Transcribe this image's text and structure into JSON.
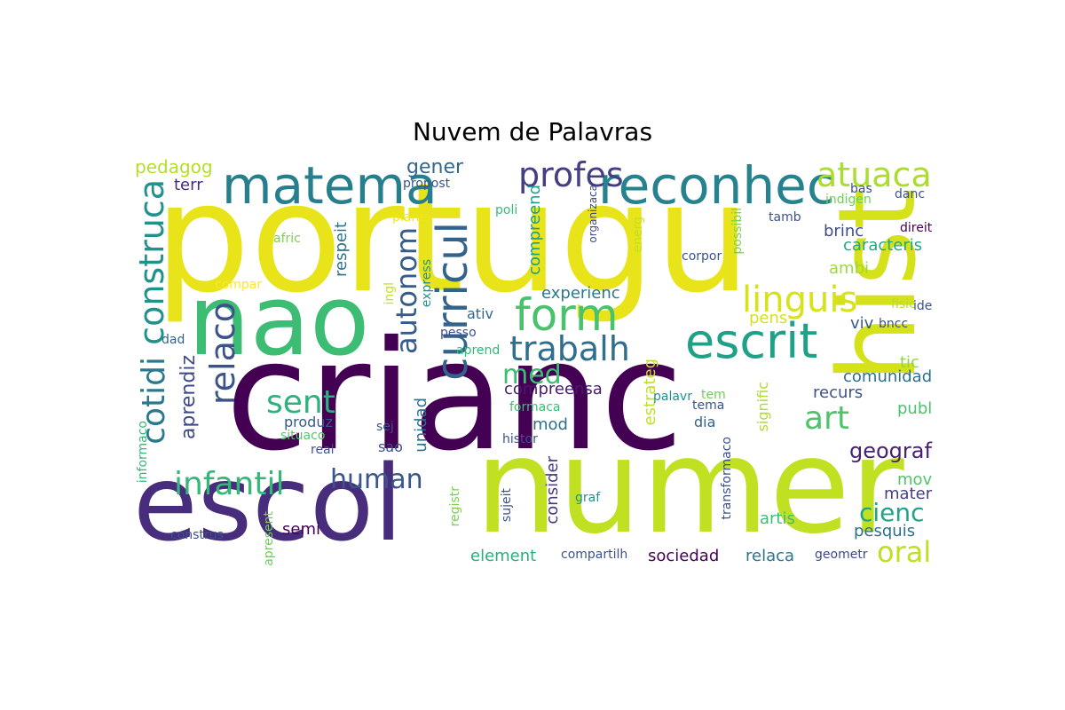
{
  "title": "Nuvem de Palavras",
  "palette": {
    "dark_purple": "#440154",
    "indigo": "#472d7b",
    "blue": "#3b528b",
    "steel": "#31688e",
    "teal": "#26828e",
    "sea": "#1f9e89",
    "green": "#35b779",
    "lime": "#6ece58",
    "yellow_green": "#b5de2b",
    "yellow": "#e8e419"
  },
  "words": [
    {
      "text": "portugu",
      "color": "#e8e419"
    },
    {
      "text": "crianc",
      "color": "#440154"
    },
    {
      "text": "numer",
      "color": "#c0e022"
    },
    {
      "text": "escol",
      "color": "#472d7b"
    },
    {
      "text": "nao",
      "color": "#3dbc74"
    },
    {
      "text": "hist",
      "color": "#d5e21a"
    },
    {
      "text": "reconhec",
      "color": "#26828e"
    },
    {
      "text": "matema",
      "color": "#277f8e"
    },
    {
      "text": "escrit",
      "color": "#1fa187"
    },
    {
      "text": "form",
      "color": "#4ac16d"
    },
    {
      "text": "curricul",
      "color": "#33638d"
    },
    {
      "text": "linguis",
      "color": "#d8e219"
    },
    {
      "text": "trabalh",
      "color": "#2e6e8e"
    },
    {
      "text": "construca",
      "color": "#21918c"
    },
    {
      "text": "atuaca",
      "color": "#addc30"
    },
    {
      "text": "profes",
      "color": "#433e85"
    },
    {
      "text": "relaco",
      "color": "#3b528b"
    },
    {
      "text": "cotidi",
      "color": "#2a788e"
    },
    {
      "text": "sent",
      "color": "#2db27d"
    },
    {
      "text": "infantil",
      "color": "#35b779"
    },
    {
      "text": "art",
      "color": "#4ec36b"
    },
    {
      "text": "autonom",
      "color": "#365c8d"
    },
    {
      "text": "med",
      "color": "#3fbc73"
    },
    {
      "text": "human",
      "color": "#39568c"
    },
    {
      "text": "cienc",
      "color": "#20a386"
    },
    {
      "text": "oral",
      "color": "#bddf26"
    },
    {
      "text": "geograf",
      "color": "#482173"
    },
    {
      "text": "aprendiz",
      "color": "#3e4989"
    },
    {
      "text": "gener",
      "color": "#31688e"
    },
    {
      "text": "pedagog",
      "color": "#b5de2b"
    },
    {
      "text": "terr",
      "color": "#472c7a"
    },
    {
      "text": "propost",
      "color": "#3b528b"
    },
    {
      "text": "respeit",
      "color": "#2c728e"
    },
    {
      "text": "unidad",
      "color": "#2e6f8e"
    },
    {
      "text": "compreend",
      "color": "#1f9e89"
    },
    {
      "text": "organizaca",
      "color": "#3f4788"
    },
    {
      "text": "brinc",
      "color": "#3e4c8a"
    },
    {
      "text": "caracteris",
      "color": "#22a785"
    },
    {
      "text": "ambi",
      "color": "#9dd93b"
    },
    {
      "text": "experienc",
      "color": "#2a788e"
    },
    {
      "text": "compreensa",
      "color": "#481a6c"
    },
    {
      "text": "produz",
      "color": "#375a8c"
    },
    {
      "text": "sao",
      "color": "#3b528b"
    },
    {
      "text": "semi",
      "color": "#440154"
    },
    {
      "text": "consider",
      "color": "#443983"
    },
    {
      "text": "estrateg",
      "color": "#c2df23"
    },
    {
      "text": "mod",
      "color": "#2d718e"
    },
    {
      "text": "dia",
      "color": "#33638d"
    },
    {
      "text": "pens",
      "color": "#d5e21a"
    },
    {
      "text": "viv",
      "color": "#38598c"
    },
    {
      "text": "tic",
      "color": "#8bd646"
    },
    {
      "text": "recurs",
      "color": "#3b528b"
    },
    {
      "text": "comunidad",
      "color": "#2d708e"
    },
    {
      "text": "publ",
      "color": "#4ac16d"
    },
    {
      "text": "signific",
      "color": "#addc30"
    },
    {
      "text": "mater",
      "color": "#433e85"
    },
    {
      "text": "mov",
      "color": "#52c569"
    },
    {
      "text": "artis",
      "color": "#3dbc74"
    },
    {
      "text": "pesquis",
      "color": "#2d708e"
    },
    {
      "text": "sociedad",
      "color": "#440154"
    },
    {
      "text": "relaca",
      "color": "#2a768e"
    },
    {
      "text": "element",
      "color": "#29af7f"
    },
    {
      "text": "compartilh",
      "color": "#3b528b"
    },
    {
      "text": "geometr",
      "color": "#3e4989"
    },
    {
      "text": "ativ",
      "color": "#31688e"
    },
    {
      "text": "pesso",
      "color": "#3b528b"
    },
    {
      "text": "aprend",
      "color": "#35b779"
    },
    {
      "text": "express",
      "color": "#21918c"
    },
    {
      "text": "ingl",
      "color": "#c8e020"
    },
    {
      "text": "poli",
      "color": "#3aba76"
    },
    {
      "text": "planej",
      "color": "#f1e51d"
    },
    {
      "text": "afric",
      "color": "#7ad151"
    },
    {
      "text": "compar",
      "color": "#fde725"
    },
    {
      "text": "dad",
      "color": "#33638d"
    },
    {
      "text": "informaco",
      "color": "#35b779"
    },
    {
      "text": "situaco",
      "color": "#56c667"
    },
    {
      "text": "real",
      "color": "#3b528b"
    },
    {
      "text": "sej",
      "color": "#3b528b"
    },
    {
      "text": "formaca",
      "color": "#3fbc73"
    },
    {
      "text": "histor",
      "color": "#3b528b"
    },
    {
      "text": "registr",
      "color": "#7ad151"
    },
    {
      "text": "sujeit",
      "color": "#3b528b"
    },
    {
      "text": "construs",
      "color": "#3b528b"
    },
    {
      "text": "apresent",
      "color": "#6ece58"
    },
    {
      "text": "graf",
      "color": "#21918c"
    },
    {
      "text": "transformaco",
      "color": "#3b528b"
    },
    {
      "text": "tema",
      "color": "#3b528b"
    },
    {
      "text": "tem",
      "color": "#6ece58"
    },
    {
      "text": "palavr",
      "color": "#21918c"
    },
    {
      "text": "energ",
      "color": "#c2df23"
    },
    {
      "text": "corpor",
      "color": "#3b528b"
    },
    {
      "text": "possibil",
      "color": "#7ad151"
    },
    {
      "text": "tamb",
      "color": "#3b528b"
    },
    {
      "text": "bas",
      "color": "#3b528b"
    },
    {
      "text": "indigen",
      "color": "#6ece58"
    },
    {
      "text": "danc",
      "color": "#3b528b"
    },
    {
      "text": "direit",
      "color": "#440154"
    },
    {
      "text": "fisic",
      "color": "#b5de2b"
    },
    {
      "text": "ide",
      "color": "#3b528b"
    },
    {
      "text": "bncc",
      "color": "#3b528b"
    }
  ]
}
